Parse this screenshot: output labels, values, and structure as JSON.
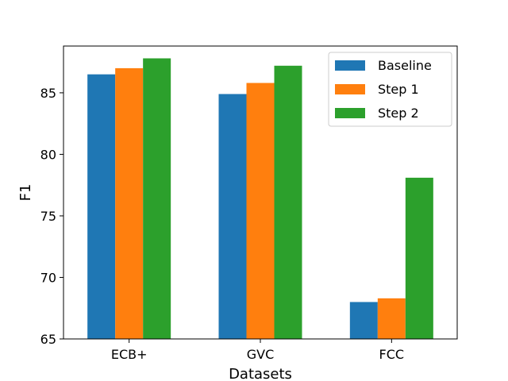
{
  "chart_data": {
    "type": "bar",
    "categories": [
      "ECB+",
      "GVC",
      "FCC"
    ],
    "series": [
      {
        "name": "Baseline",
        "values": [
          86.5,
          84.9,
          68.0
        ],
        "color": "#1f77b4"
      },
      {
        "name": "Step 1",
        "values": [
          87.0,
          85.8,
          68.3
        ],
        "color": "#ff7f0e"
      },
      {
        "name": "Step 2",
        "values": [
          87.8,
          87.2,
          78.1
        ],
        "color": "#2ca02c"
      }
    ],
    "xlabel": "Datasets",
    "ylabel": "F1",
    "ylim": [
      65,
      88.8
    ],
    "yticks": [
      65,
      70,
      75,
      80,
      85
    ],
    "legend_position": "top-right",
    "grid": false
  }
}
